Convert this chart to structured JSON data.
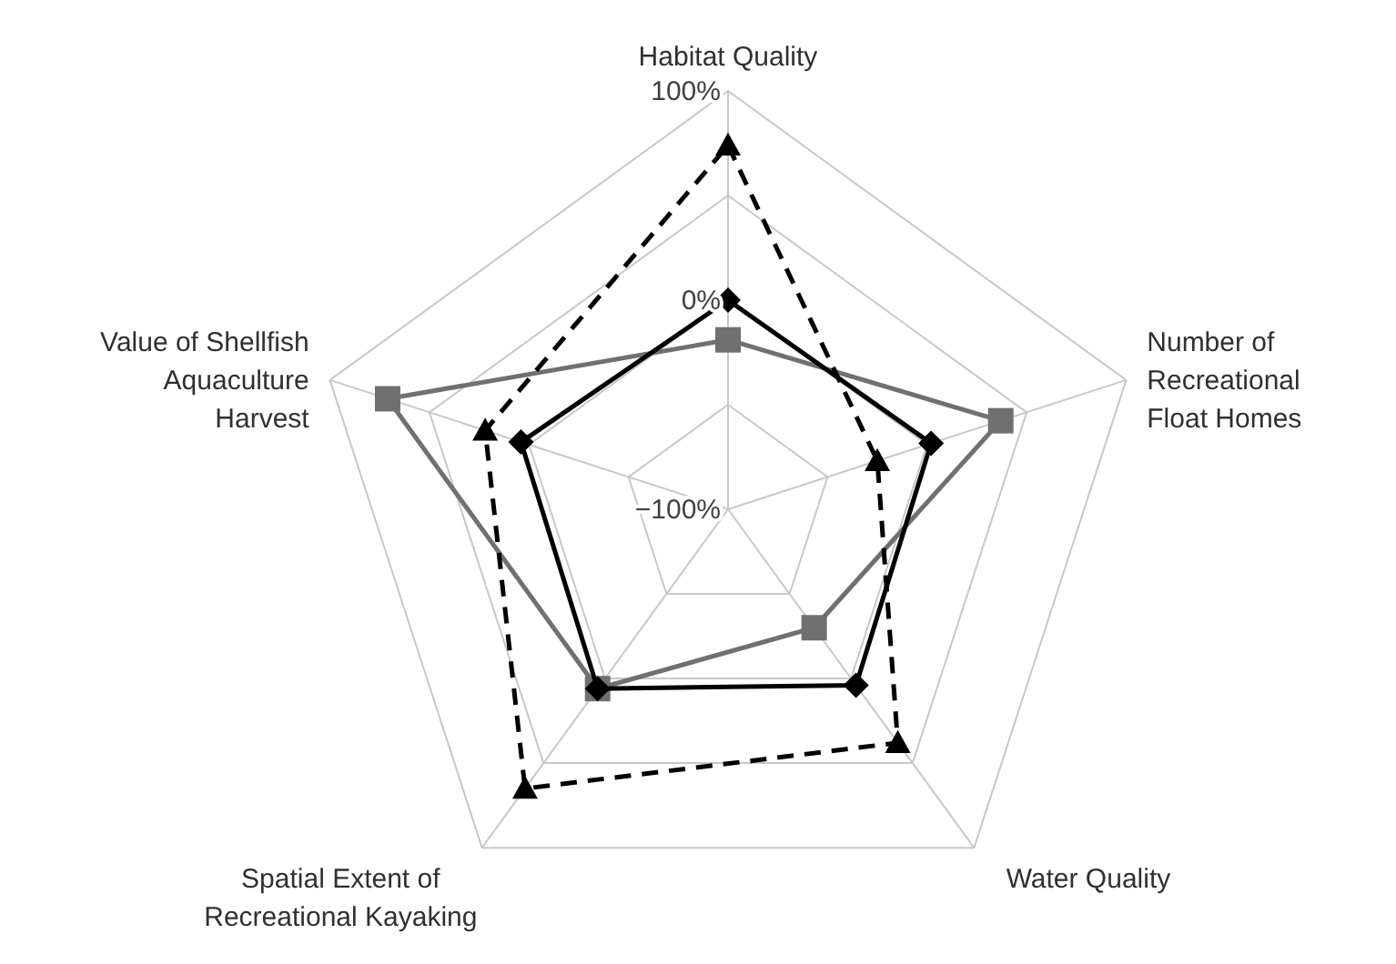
{
  "chart_data": {
    "type": "radar",
    "categories": [
      "Habitat Quality",
      "Number of\nRecreational\nFloat Homes",
      "Water Quality",
      "Spatial Extent of\nRecreational Kayaking",
      "Value of Shellfish\nAquaculture\nHarvest"
    ],
    "ylim": [
      -100,
      100
    ],
    "yticks": [
      {
        "value": -100,
        "label": "−100%"
      },
      {
        "value": 0,
        "label": "0%"
      },
      {
        "value": 100,
        "label": "100%"
      }
    ],
    "grid": true,
    "series": [
      {
        "color": "#707070",
        "marker": "square",
        "line_style": "solid",
        "values": [
          -19,
          37,
          -30,
          6,
          71
        ]
      },
      {
        "color": "#000000",
        "marker": "diamond",
        "line_style": "solid",
        "values": [
          0,
          2,
          4,
          6,
          4
        ]
      },
      {
        "color": "#000000",
        "marker": "triangle",
        "line_style": "dashed",
        "values": [
          74,
          -25,
          38,
          65,
          22
        ]
      }
    ]
  }
}
